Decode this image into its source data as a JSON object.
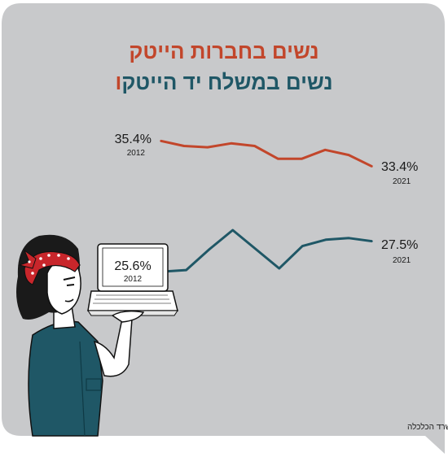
{
  "titles": {
    "line1": "נשים בחברות הייטק",
    "line2_prefix": "ו",
    "line2": "נשים במשלח יד הייטק"
  },
  "source": "מקור: זרוע העבודה במשרד הכלכלה",
  "colors": {
    "background": "#c8c9cb",
    "series_companies": "#c2462b",
    "series_occupation": "#1f5766",
    "text": "#1a1a1a"
  },
  "illustration": {
    "figure": "woman-with-laptop",
    "laptop_screen_value": "25.6%",
    "laptop_screen_year": "2012"
  },
  "chart_data": [
    {
      "type": "line",
      "title": "נשים בחברות הייטק",
      "color": "#c2462b",
      "x": [
        2012,
        2013,
        2014,
        2015,
        2016,
        2017,
        2018,
        2019,
        2020,
        2021
      ],
      "y": [
        35.4,
        35.0,
        34.9,
        35.2,
        35.0,
        34.0,
        34.0,
        34.7,
        34.3,
        33.4
      ],
      "start_label": "35.4%",
      "start_year": "2012",
      "end_label": "33.4%",
      "end_year": "2021",
      "ylim": [
        33.2,
        35.6
      ],
      "grid": false
    },
    {
      "type": "line",
      "title": "נשים במשלח יד הייטק",
      "color": "#1f5766",
      "x": [
        2012,
        2013,
        2014,
        2015,
        2016,
        2017,
        2018,
        2019,
        2020,
        2021
      ],
      "y": [
        25.6,
        25.7,
        27.0,
        28.2,
        27.0,
        25.8,
        27.2,
        27.6,
        27.7,
        27.5
      ],
      "start_label": "25.6%",
      "start_year": "2012",
      "end_label": "27.5%",
      "end_year": "2021",
      "ylim": [
        25.5,
        28.3
      ],
      "grid": false
    }
  ]
}
